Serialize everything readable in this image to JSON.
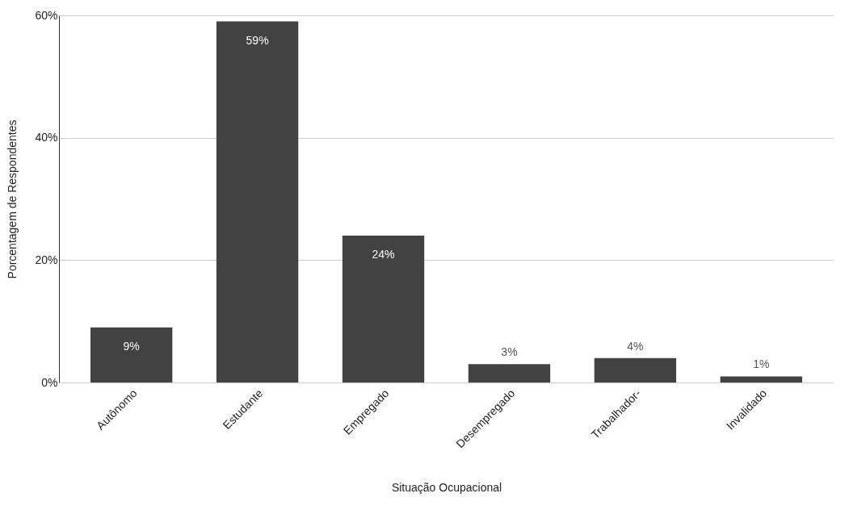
{
  "chart_data": {
    "type": "bar",
    "xlabel": "Situação Ocupacional",
    "ylabel": "Porcentagem de Respondentes",
    "categories": [
      "Autônomo",
      "Estudante",
      "Empregado",
      "Desempregado",
      "Trabalhador-",
      "Invalidado"
    ],
    "values": [
      9,
      59,
      24,
      3,
      4,
      1
    ],
    "value_labels": [
      "9%",
      "59%",
      "24%",
      "3%",
      "4%",
      "1%"
    ],
    "color": "#424242",
    "ylim": [
      0,
      60
    ],
    "yticks": [
      {
        "value": 0,
        "label": "0%"
      },
      {
        "value": 20,
        "label": "20%"
      },
      {
        "value": 40,
        "label": "40%"
      },
      {
        "value": 60,
        "label": "60%"
      }
    ],
    "grid": "y"
  }
}
